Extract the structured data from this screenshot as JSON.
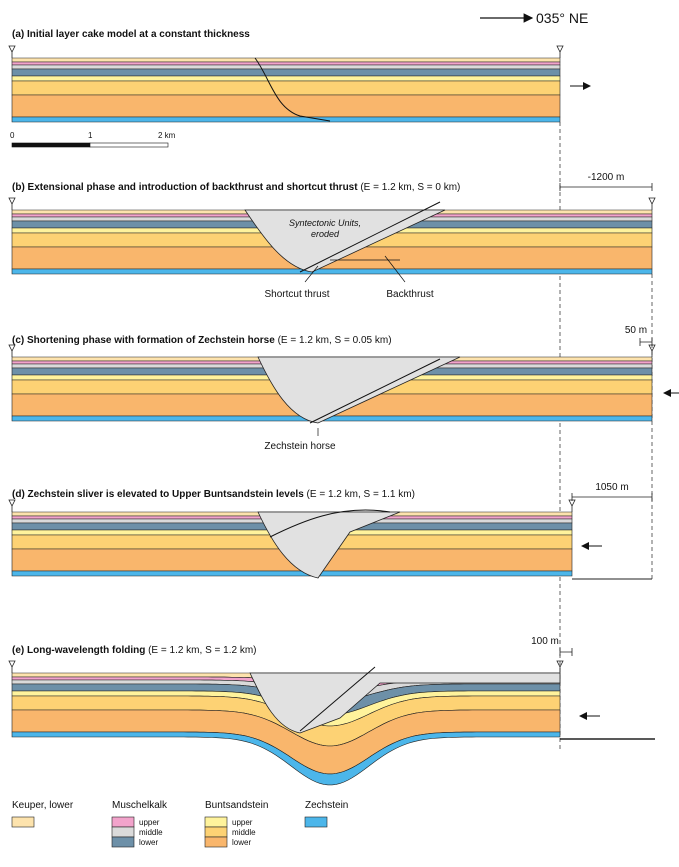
{
  "direction": "035° NE",
  "scale": {
    "labels": [
      "0",
      "1",
      "2 km"
    ]
  },
  "panels": [
    {
      "title": "(a) Initial layer cake model at a constant thickness"
    },
    {
      "title": "(b) Extensional phase and introduction of backthrust and shortcut thrust",
      "params": "(E = 1.2 km, S = 0 km)",
      "offset": "-1200 m",
      "labels": [
        "Syntectonic Units,",
        "eroded",
        "Shortcut thrust",
        "Backthrust"
      ]
    },
    {
      "title": "(c) Shortening phase with formation of Zechstein horse",
      "params": "(E = 1.2 km, S = 0.05 km)",
      "offset": "50 m",
      "labels": [
        "Zechstein horse"
      ]
    },
    {
      "title": "(d) Zechstein sliver is elevated to Upper Buntsandstein levels",
      "params": "(E = 1.2 km, S = 1.1 km)",
      "offset": "1050 m"
    },
    {
      "title": "(e) Long-wavelength folding",
      "params": "(E = 1.2 km, S = 1.2 km)",
      "offset": "100 m"
    }
  ],
  "legend": [
    {
      "name": "Keuper, lower"
    },
    {
      "name": "Muschelkalk",
      "items": [
        "upper",
        "middle",
        "lower"
      ]
    },
    {
      "name": "Buntsandstein",
      "items": [
        "upper",
        "middle",
        "lower"
      ]
    },
    {
      "name": "Zechstein"
    }
  ]
}
